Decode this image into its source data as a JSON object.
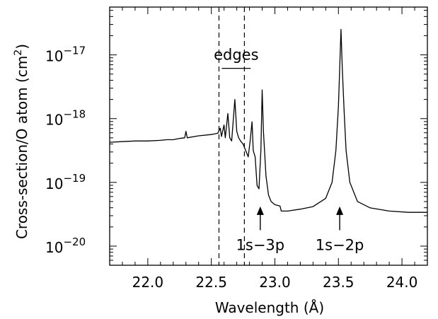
{
  "chart_data": {
    "type": "line",
    "title": "",
    "xlabel": "Wavelength (Å)",
    "ylabel": "Cross-section/O atom (cm²)",
    "ylabel_parts": {
      "main": "Cross-section/O atom (cm",
      "sup": "2",
      "close": ")"
    },
    "xlim": [
      21.7,
      24.2
    ],
    "ylim_exp": [
      -20.3,
      -16.25
    ],
    "yscale": "log",
    "grid": false,
    "x_ticks": [
      {
        "value": 22.0,
        "label": "22.0"
      },
      {
        "value": 22.5,
        "label": "22.5"
      },
      {
        "value": 23.0,
        "label": "23.0"
      },
      {
        "value": 23.5,
        "label": "23.5"
      },
      {
        "value": 24.0,
        "label": "24.0"
      }
    ],
    "y_ticks": [
      {
        "exp": -17,
        "base": "10",
        "sup": "−17"
      },
      {
        "exp": -18,
        "base": "10",
        "sup": "−18"
      },
      {
        "exp": -19,
        "base": "10",
        "sup": "−19"
      },
      {
        "exp": -20,
        "base": "10",
        "sup": "−20"
      }
    ],
    "edges_x": [
      22.56,
      22.76
    ],
    "annotations": {
      "edges": {
        "text": "edges",
        "x_from": 22.56,
        "x_to": 22.82,
        "y_exp": -17.1
      },
      "arrows": [
        {
          "text": "1s−3p",
          "x": 22.885,
          "y_exp_from": -19.4,
          "y_exp_to": -19.75
        },
        {
          "text": "1s−2p",
          "x": 23.51,
          "y_exp_from": -19.4,
          "y_exp_to": -19.75
        }
      ]
    },
    "series": [
      {
        "values_x_y_exp": [
          [
            21.7,
            -18.37
          ],
          [
            21.8,
            -18.36
          ],
          [
            21.9,
            -18.35
          ],
          [
            22.0,
            -18.35
          ],
          [
            22.1,
            -18.34
          ],
          [
            22.15,
            -18.33
          ],
          [
            22.2,
            -18.33
          ],
          [
            22.25,
            -18.31
          ],
          [
            22.29,
            -18.3
          ],
          [
            22.3,
            -18.2
          ],
          [
            22.31,
            -18.3
          ],
          [
            22.4,
            -18.27
          ],
          [
            22.5,
            -18.25
          ],
          [
            22.55,
            -18.23
          ],
          [
            22.57,
            -18.15
          ],
          [
            22.58,
            -18.28
          ],
          [
            22.6,
            -18.1
          ],
          [
            22.61,
            -18.3
          ],
          [
            22.63,
            -17.92
          ],
          [
            22.645,
            -18.3
          ],
          [
            22.66,
            -18.35
          ],
          [
            22.685,
            -17.7
          ],
          [
            22.7,
            -18.2
          ],
          [
            22.715,
            -18.3
          ],
          [
            22.73,
            -18.35
          ],
          [
            22.75,
            -18.4
          ],
          [
            22.77,
            -18.5
          ],
          [
            22.79,
            -18.6
          ],
          [
            22.805,
            -18.35
          ],
          [
            22.82,
            -18.05
          ],
          [
            22.83,
            -18.5
          ],
          [
            22.845,
            -18.6
          ],
          [
            22.86,
            -19.05
          ],
          [
            22.875,
            -19.1
          ],
          [
            22.89,
            -18.5
          ],
          [
            22.9,
            -17.55
          ],
          [
            22.91,
            -18.2
          ],
          [
            22.93,
            -18.9
          ],
          [
            22.95,
            -19.2
          ],
          [
            22.97,
            -19.3
          ],
          [
            23.0,
            -19.35
          ],
          [
            23.04,
            -19.37
          ],
          [
            23.05,
            -19.45
          ],
          [
            23.1,
            -19.45
          ],
          [
            23.2,
            -19.42
          ],
          [
            23.3,
            -19.38
          ],
          [
            23.4,
            -19.25
          ],
          [
            23.45,
            -19.0
          ],
          [
            23.48,
            -18.5
          ],
          [
            23.5,
            -17.8
          ],
          [
            23.51,
            -17.2
          ],
          [
            23.52,
            -16.6
          ],
          [
            23.53,
            -17.2
          ],
          [
            23.545,
            -17.9
          ],
          [
            23.56,
            -18.5
          ],
          [
            23.59,
            -19.0
          ],
          [
            23.65,
            -19.3
          ],
          [
            23.75,
            -19.4
          ],
          [
            23.9,
            -19.45
          ],
          [
            24.05,
            -19.47
          ],
          [
            24.2,
            -19.47
          ]
        ]
      }
    ]
  }
}
